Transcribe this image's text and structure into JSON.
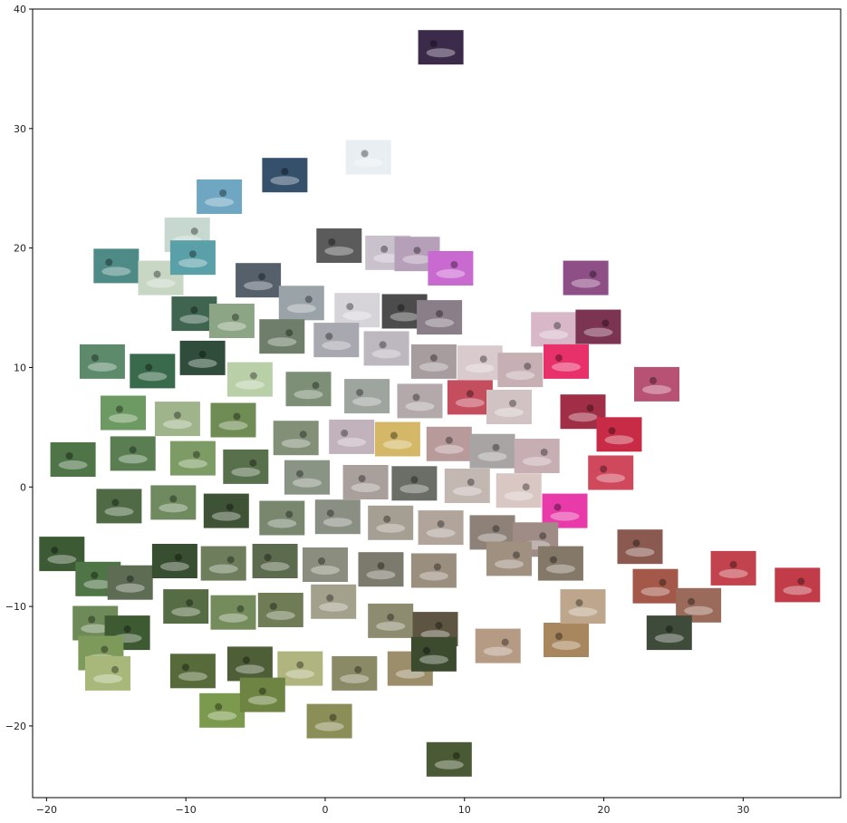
{
  "chart_data": {
    "type": "scatter",
    "title": "",
    "xlabel": "",
    "ylabel": "",
    "xlim": [
      -21,
      37
    ],
    "ylim": [
      -26,
      40
    ],
    "xticks": [
      -20,
      -10,
      0,
      10,
      20,
      30
    ],
    "yticks": [
      -20,
      -10,
      0,
      10,
      20,
      30,
      40
    ],
    "xtick_labels": [
      "−20",
      "−10",
      "0",
      "10",
      "20",
      "30"
    ],
    "ytick_labels": [
      "−20",
      "−10",
      "0",
      "10",
      "20",
      "30",
      "40"
    ],
    "grid": false,
    "legend": "none",
    "marker": "image-thumbnail",
    "points": [
      {
        "x": 8.3,
        "y": 36.8,
        "c": "#3b2a4a"
      },
      {
        "x": 3.1,
        "y": 27.6,
        "c": "#e8eef2"
      },
      {
        "x": -2.9,
        "y": 26.1,
        "c": "#34506a"
      },
      {
        "x": -7.6,
        "y": 24.3,
        "c": "#6fa6c2"
      },
      {
        "x": -9.9,
        "y": 21.1,
        "c": "#c7d8d0"
      },
      {
        "x": 1.0,
        "y": 20.2,
        "c": "#5b5b5b"
      },
      {
        "x": 4.5,
        "y": 19.6,
        "c": "#c9c2cc"
      },
      {
        "x": 6.6,
        "y": 19.5,
        "c": "#b69fb8"
      },
      {
        "x": 9.0,
        "y": 18.3,
        "c": "#c96ad0"
      },
      {
        "x": 18.7,
        "y": 17.5,
        "c": "#8e4f86"
      },
      {
        "x": -15.0,
        "y": 18.5,
        "c": "#4f8b86"
      },
      {
        "x": -11.8,
        "y": 17.5,
        "c": "#c8d6c4"
      },
      {
        "x": -9.5,
        "y": 19.2,
        "c": "#5aa0a8"
      },
      {
        "x": -4.8,
        "y": 17.3,
        "c": "#55606a"
      },
      {
        "x": -1.7,
        "y": 15.4,
        "c": "#9aa3a8"
      },
      {
        "x": 2.3,
        "y": 14.8,
        "c": "#d6d4d8"
      },
      {
        "x": 5.7,
        "y": 14.7,
        "c": "#4c4c4c"
      },
      {
        "x": 8.2,
        "y": 14.2,
        "c": "#8a7f89"
      },
      {
        "x": 16.4,
        "y": 13.2,
        "c": "#d8b8c8"
      },
      {
        "x": 19.6,
        "y": 13.4,
        "c": "#7b3452"
      },
      {
        "x": 17.3,
        "y": 10.5,
        "c": "#e8306a"
      },
      {
        "x": 23.8,
        "y": 8.6,
        "c": "#b85274"
      },
      {
        "x": -9.4,
        "y": 14.5,
        "c": "#3f6450"
      },
      {
        "x": -6.7,
        "y": 13.9,
        "c": "#8ca584"
      },
      {
        "x": -3.1,
        "y": 12.6,
        "c": "#6e7e6a"
      },
      {
        "x": 0.8,
        "y": 12.3,
        "c": "#a8a8b0"
      },
      {
        "x": 4.4,
        "y": 11.6,
        "c": "#bdb7bf"
      },
      {
        "x": 7.8,
        "y": 10.5,
        "c": "#a79c9e"
      },
      {
        "x": 11.1,
        "y": 10.4,
        "c": "#d9cacd"
      },
      {
        "x": 14.0,
        "y": 9.8,
        "c": "#c7b0b4"
      },
      {
        "x": -16.0,
        "y": 10.5,
        "c": "#5c8a6a"
      },
      {
        "x": -12.4,
        "y": 9.7,
        "c": "#3a6a4c"
      },
      {
        "x": -8.8,
        "y": 10.8,
        "c": "#2f4d3a"
      },
      {
        "x": -5.4,
        "y": 9.0,
        "c": "#b8cfa8"
      },
      {
        "x": -1.2,
        "y": 8.2,
        "c": "#7d8f76"
      },
      {
        "x": 3.0,
        "y": 7.6,
        "c": "#9ea49e"
      },
      {
        "x": 6.8,
        "y": 7.2,
        "c": "#b3a9ab"
      },
      {
        "x": 10.4,
        "y": 7.5,
        "c": "#c44e5e"
      },
      {
        "x": 13.2,
        "y": 6.7,
        "c": "#d1c3c4"
      },
      {
        "x": 18.5,
        "y": 6.3,
        "c": "#a02e46"
      },
      {
        "x": 21.1,
        "y": 4.4,
        "c": "#c72b46"
      },
      {
        "x": -14.5,
        "y": 6.2,
        "c": "#6d9a62"
      },
      {
        "x": -10.6,
        "y": 5.7,
        "c": "#9fb48a"
      },
      {
        "x": -6.6,
        "y": 5.6,
        "c": "#6f8c54"
      },
      {
        "x": -2.1,
        "y": 4.1,
        "c": "#839078"
      },
      {
        "x": 1.9,
        "y": 4.2,
        "c": "#c2b2bc"
      },
      {
        "x": 5.2,
        "y": 4.0,
        "c": "#d4b868"
      },
      {
        "x": 8.9,
        "y": 3.6,
        "c": "#b89a9a"
      },
      {
        "x": 12.0,
        "y": 3.0,
        "c": "#a8a4a4"
      },
      {
        "x": 15.2,
        "y": 2.6,
        "c": "#c6aeb2"
      },
      {
        "x": 20.5,
        "y": 1.2,
        "c": "#d0485c"
      },
      {
        "x": -18.1,
        "y": 2.3,
        "c": "#4e7448"
      },
      {
        "x": -13.8,
        "y": 2.8,
        "c": "#5a7e52"
      },
      {
        "x": -9.5,
        "y": 2.4,
        "c": "#7d9b64"
      },
      {
        "x": -5.7,
        "y": 1.7,
        "c": "#58704c"
      },
      {
        "x": -1.3,
        "y": 0.8,
        "c": "#8a9484"
      },
      {
        "x": 2.9,
        "y": 0.4,
        "c": "#a9a09c"
      },
      {
        "x": 6.4,
        "y": 0.3,
        "c": "#6b6e66"
      },
      {
        "x": 10.2,
        "y": 0.1,
        "c": "#c3b7b2"
      },
      {
        "x": 13.9,
        "y": -0.3,
        "c": "#d8c7c3"
      },
      {
        "x": 17.2,
        "y": -2.0,
        "c": "#e83aa8"
      },
      {
        "x": -14.8,
        "y": -1.6,
        "c": "#4f6a44"
      },
      {
        "x": -10.9,
        "y": -1.3,
        "c": "#6f8a5e"
      },
      {
        "x": -7.1,
        "y": -2.0,
        "c": "#3e5236"
      },
      {
        "x": -3.1,
        "y": -2.6,
        "c": "#79876f"
      },
      {
        "x": 0.9,
        "y": -2.5,
        "c": "#8a8f84"
      },
      {
        "x": 4.7,
        "y": -3.0,
        "c": "#a59e92"
      },
      {
        "x": 8.3,
        "y": -3.4,
        "c": "#b0a49b"
      },
      {
        "x": 12.0,
        "y": -3.8,
        "c": "#8e8278"
      },
      {
        "x": 15.1,
        "y": -4.4,
        "c": "#9f8c86"
      },
      {
        "x": -18.9,
        "y": -5.6,
        "c": "#3c5a34"
      },
      {
        "x": -16.3,
        "y": -7.7,
        "c": "#4f7446"
      },
      {
        "x": -14.0,
        "y": -8.0,
        "c": "#5e6c54"
      },
      {
        "x": -10.8,
        "y": -6.2,
        "c": "#384e30"
      },
      {
        "x": -7.3,
        "y": -6.4,
        "c": "#6e7e5c"
      },
      {
        "x": -3.6,
        "y": -6.2,
        "c": "#5c6a4e"
      },
      {
        "x": 0.0,
        "y": -6.5,
        "c": "#8b8e7e"
      },
      {
        "x": 4.0,
        "y": -6.9,
        "c": "#7c7a6c"
      },
      {
        "x": 7.8,
        "y": -7.0,
        "c": "#9a8e7e"
      },
      {
        "x": 13.2,
        "y": -6.0,
        "c": "#a09080"
      },
      {
        "x": 16.9,
        "y": -6.4,
        "c": "#847868"
      },
      {
        "x": 22.6,
        "y": -5.0,
        "c": "#8a5a50"
      },
      {
        "x": 29.3,
        "y": -6.8,
        "c": "#c2424e"
      },
      {
        "x": 33.9,
        "y": -8.2,
        "c": "#c13c48"
      },
      {
        "x": 23.7,
        "y": -8.3,
        "c": "#a4584a"
      },
      {
        "x": 26.8,
        "y": -9.9,
        "c": "#9a6a5a"
      },
      {
        "x": -16.5,
        "y": -11.4,
        "c": "#6d8a58"
      },
      {
        "x": -14.2,
        "y": -12.2,
        "c": "#3e5a32"
      },
      {
        "x": -10.0,
        "y": -10.0,
        "c": "#566c44"
      },
      {
        "x": -6.6,
        "y": -10.5,
        "c": "#748c5c"
      },
      {
        "x": -3.2,
        "y": -10.3,
        "c": "#6f7c56"
      },
      {
        "x": 0.6,
        "y": -9.6,
        "c": "#a3a08c"
      },
      {
        "x": 4.7,
        "y": -11.2,
        "c": "#8e8c70"
      },
      {
        "x": 7.9,
        "y": -11.9,
        "c": "#5e5442"
      },
      {
        "x": 12.4,
        "y": -13.3,
        "c": "#b59a84"
      },
      {
        "x": 17.3,
        "y": -12.8,
        "c": "#a8865e"
      },
      {
        "x": 18.5,
        "y": -10.0,
        "c": "#bda68c"
      },
      {
        "x": 24.7,
        "y": -12.2,
        "c": "#3e4a3a"
      },
      {
        "x": -16.1,
        "y": -13.9,
        "c": "#7e9a5a"
      },
      {
        "x": -15.6,
        "y": -15.6,
        "c": "#a7b87a"
      },
      {
        "x": -9.5,
        "y": -15.4,
        "c": "#566a3a"
      },
      {
        "x": -5.4,
        "y": -14.8,
        "c": "#4e5e36"
      },
      {
        "x": -1.8,
        "y": -15.2,
        "c": "#b0b47e"
      },
      {
        "x": 2.1,
        "y": -15.6,
        "c": "#8a8a66"
      },
      {
        "x": 6.1,
        "y": -15.2,
        "c": "#9c8e6a"
      },
      {
        "x": 7.8,
        "y": -14.0,
        "c": "#3c4a2e"
      },
      {
        "x": -7.4,
        "y": -18.7,
        "c": "#7c9a4e"
      },
      {
        "x": -4.5,
        "y": -17.4,
        "c": "#6e8442"
      },
      {
        "x": 0.3,
        "y": -19.6,
        "c": "#8c8e58"
      },
      {
        "x": 8.9,
        "y": -22.8,
        "c": "#4a5a34"
      }
    ]
  }
}
